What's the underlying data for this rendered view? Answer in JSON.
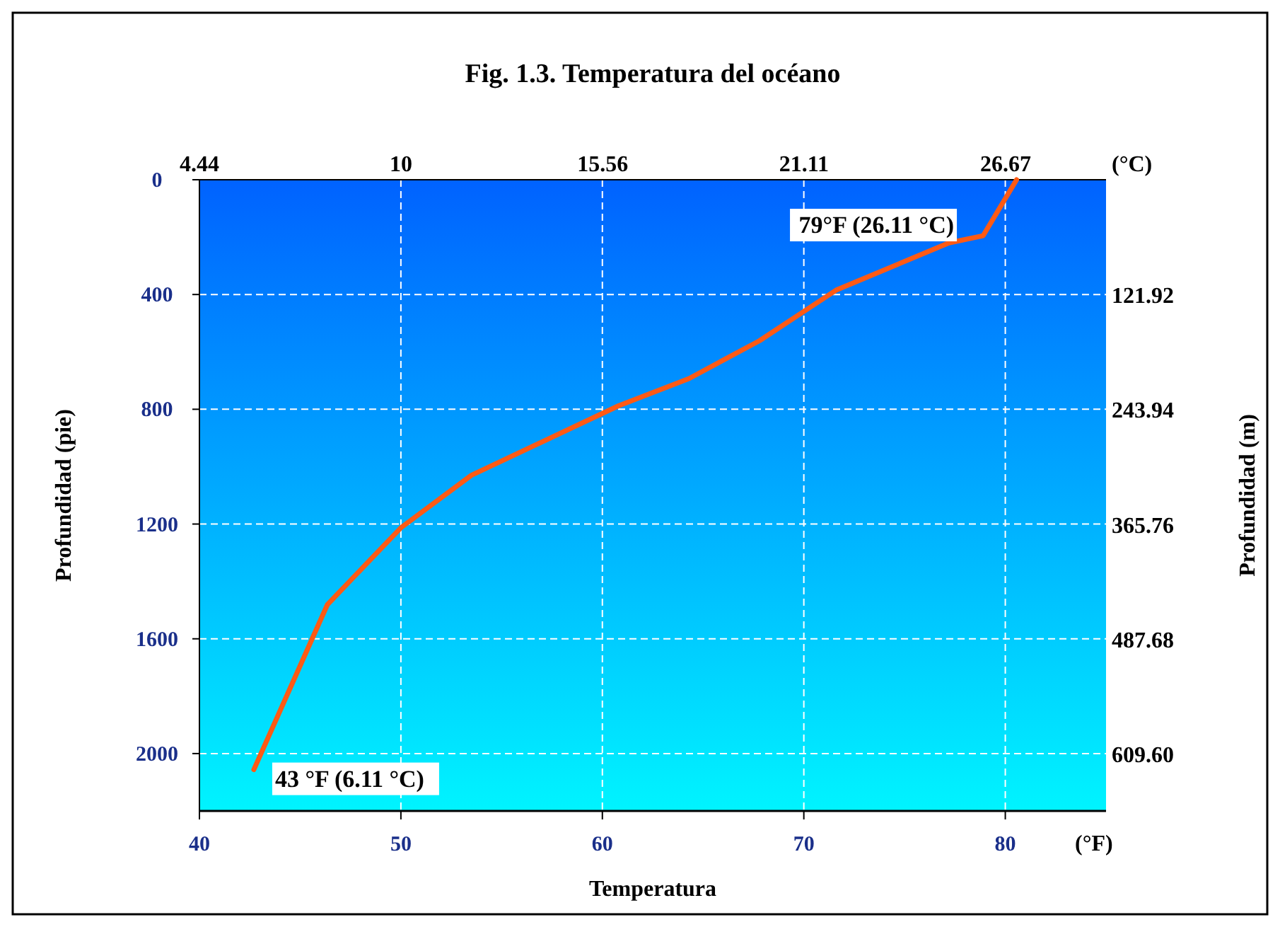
{
  "chart_data": {
    "type": "line",
    "title": "Fig. 1.3. Temperatura del océano",
    "xlabel": "Temperatura",
    "ylabel": "Profundidad (pie)",
    "y2label": "Profundidad (m)",
    "x2label": "(°C)",
    "x": [
      80.56,
      78.9,
      77.2,
      71.6,
      70.0,
      67.8,
      64.3,
      60.8,
      53.5,
      50.0,
      46.35,
      42.7
    ],
    "series": [
      {
        "color": "#ff5a14",
        "values": [
          0,
          195,
          220,
          385,
          459,
          561,
          693,
          788,
          1030,
          1213,
          1481,
          2056
        ]
      }
    ],
    "xlim": [
      40,
      85
    ],
    "xticks": [
      40,
      50,
      60,
      70,
      80
    ],
    "ylim": [
      2200,
      0
    ],
    "yticks": [
      0,
      400,
      800,
      1200,
      1600,
      2000
    ],
    "x2lim": [
      4.44,
      29.44
    ],
    "x2ticks": [
      4.44,
      10,
      15.56,
      21.11,
      26.67
    ],
    "y2lim": [
      670.56,
      0
    ],
    "y2ticks": [
      121.92,
      {
        "value": 243.94,
        "label": "243.94"
      },
      365.76,
      487.68,
      {
        "value": 609.6,
        "label": "609.60"
      }
    ],
    "grid": true,
    "marker": "none",
    "line_style": "solid",
    "annotations": [
      {
        "text": "79°F (26.11 °C)",
        "x": 79,
        "y": 195
      },
      {
        "text": "43 °F (6.11 °C)",
        "x": 42.7,
        "y": 2056
      },
      "(°F)"
    ]
  }
}
